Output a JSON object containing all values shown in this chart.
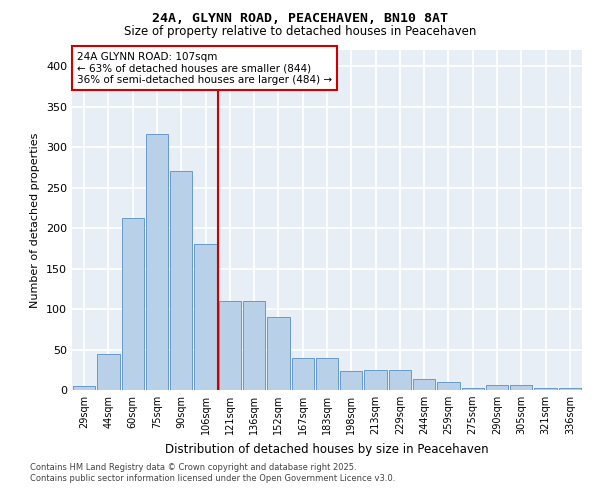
{
  "title1": "24A, GLYNN ROAD, PEACEHAVEN, BN10 8AT",
  "title2": "Size of property relative to detached houses in Peacehaven",
  "xlabel": "Distribution of detached houses by size in Peacehaven",
  "ylabel": "Number of detached properties",
  "categories": [
    "29sqm",
    "44sqm",
    "60sqm",
    "75sqm",
    "90sqm",
    "106sqm",
    "121sqm",
    "136sqm",
    "152sqm",
    "167sqm",
    "183sqm",
    "198sqm",
    "213sqm",
    "229sqm",
    "244sqm",
    "259sqm",
    "275sqm",
    "290sqm",
    "305sqm",
    "321sqm",
    "336sqm"
  ],
  "values": [
    5,
    44,
    212,
    316,
    270,
    180,
    110,
    110,
    90,
    40,
    40,
    24,
    25,
    25,
    14,
    10,
    2,
    6,
    6,
    3,
    3
  ],
  "bar_color": "#b8d0e8",
  "bar_edge_color": "#6699cc",
  "ref_line_color": "#cc0000",
  "annotation_text": "24A GLYNN ROAD: 107sqm\n← 63% of detached houses are smaller (844)\n36% of semi-detached houses are larger (484) →",
  "annotation_box_color": "#ffffff",
  "annotation_box_edge_color": "#cc0000",
  "ylim": [
    0,
    420
  ],
  "yticks": [
    0,
    50,
    100,
    150,
    200,
    250,
    300,
    350,
    400
  ],
  "background_color": "#e8eef5",
  "grid_color": "#ffffff",
  "footer1": "Contains HM Land Registry data © Crown copyright and database right 2025.",
  "footer2": "Contains public sector information licensed under the Open Government Licence v3.0."
}
